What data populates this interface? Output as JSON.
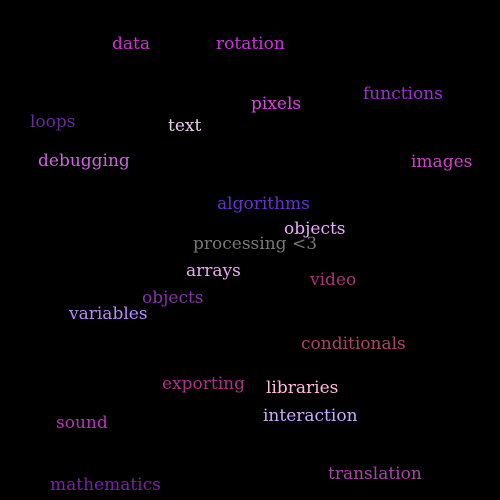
{
  "words": [
    {
      "text": "data",
      "color": "#cc33cc"
    },
    {
      "text": "rotation",
      "color": "#cc33dd"
    },
    {
      "text": "functions",
      "color": "#9a33cc"
    },
    {
      "text": "loops",
      "color": "#6a2a9a"
    },
    {
      "text": "pixels",
      "color": "#dd44dd"
    },
    {
      "text": "text",
      "color": "#eeccee"
    },
    {
      "text": "debugging",
      "color": "#cc66dd"
    },
    {
      "text": "images",
      "color": "#cc44cc"
    },
    {
      "text": "algorithms",
      "color": "#6633cc"
    },
    {
      "text": "objects",
      "color": "#f0aaff"
    },
    {
      "text": "processing <3",
      "color": "#777777"
    },
    {
      "text": "arrays",
      "color": "#eeaaee"
    },
    {
      "text": "video",
      "color": "#aa3377"
    },
    {
      "text": "objects",
      "color": "#8833aa"
    },
    {
      "text": "variables",
      "color": "#bb88ff"
    },
    {
      "text": "conditionals",
      "color": "#aa4466"
    },
    {
      "text": "exporting",
      "color": "#aa3388"
    },
    {
      "text": "libraries",
      "color": "#ffbbdd"
    },
    {
      "text": "interaction",
      "color": "#ccaaff"
    },
    {
      "text": "sound",
      "color": "#bb33bb"
    },
    {
      "text": "translation",
      "color": "#aa44aa"
    },
    {
      "text": "mathematics",
      "color": "#7722aa"
    }
  ]
}
